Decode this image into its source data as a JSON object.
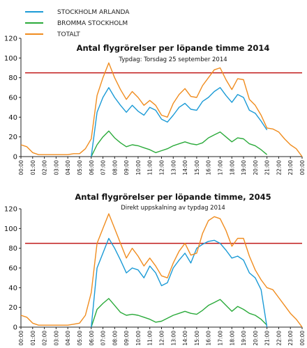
{
  "legend": [
    {
      "label": "STOCKHOLM ARLANDA",
      "color": "#1a9ad6"
    },
    {
      "label": "BROMMA STOCKHOLM",
      "color": "#2aaa3a"
    },
    {
      "label": "TOTALT",
      "color": "#f08c1e"
    }
  ],
  "chart_data": [
    {
      "type": "line",
      "title": "Antal flygrörelser per löpande timme 2014",
      "subtitle": "Typdag: Torsdag 25 september 2014",
      "ylim": [
        0,
        120
      ],
      "yticks": [
        0,
        20,
        40,
        60,
        80,
        100,
        120
      ],
      "reference_line": {
        "value": 85,
        "color": "#c01818"
      },
      "grid": false,
      "x_tick_labels": [
        "00:00",
        "01:00",
        "02:00",
        "03:00",
        "04:00",
        "05:00",
        "06:00",
        "07:00",
        "08:00",
        "09:00",
        "10:00",
        "11:00",
        "12:00",
        "13:00",
        "14:00",
        "15:00",
        "16:00",
        "17:00",
        "18:00",
        "19:00",
        "20:00",
        "21:00",
        "22:00",
        "23:00",
        "00:00"
      ],
      "x_hours": [
        0,
        0.5,
        1,
        1.5,
        2,
        2.5,
        3,
        3.5,
        4,
        4.5,
        5,
        5.5,
        6,
        6.5,
        7,
        7.5,
        8,
        8.5,
        9,
        9.5,
        10,
        10.5,
        11,
        11.5,
        12,
        12.5,
        13,
        13.5,
        14,
        14.5,
        15,
        15.5,
        16,
        16.5,
        17,
        17.5,
        18,
        18.5,
        19,
        19.5,
        20,
        20.5,
        21,
        21.5,
        22,
        22.5,
        23,
        23.5,
        24
      ],
      "series": [
        {
          "name": "STOCKHOLM ARLANDA",
          "color": "#1a9ad6",
          "values": [
            null,
            null,
            null,
            null,
            null,
            null,
            null,
            null,
            null,
            null,
            null,
            null,
            0,
            45,
            60,
            70,
            60,
            52,
            45,
            52,
            46,
            42,
            50,
            47,
            38,
            35,
            42,
            50,
            54,
            48,
            47,
            56,
            60,
            66,
            70,
            62,
            55,
            63,
            60,
            47,
            44,
            36,
            27,
            null,
            null,
            null,
            null,
            null,
            null
          ]
        },
        {
          "name": "BROMMA STOCKHOLM",
          "color": "#2aaa3a",
          "values": [
            null,
            null,
            null,
            null,
            null,
            null,
            null,
            null,
            null,
            null,
            null,
            null,
            0,
            12,
            20,
            26,
            19,
            14,
            10,
            12,
            11,
            9,
            7,
            4,
            6,
            8,
            11,
            13,
            15,
            13,
            12,
            14,
            19,
            22,
            25,
            20,
            15,
            19,
            18,
            13,
            11,
            7,
            2,
            null,
            null,
            null,
            null,
            null,
            null
          ]
        },
        {
          "name": "TOTALT",
          "color": "#f08c1e",
          "values": [
            12,
            10,
            4,
            2,
            2,
            2,
            2,
            2,
            2,
            3,
            3,
            8,
            18,
            62,
            80,
            95,
            80,
            68,
            58,
            66,
            60,
            52,
            57,
            52,
            42,
            40,
            54,
            63,
            69,
            61,
            60,
            72,
            80,
            88,
            90,
            78,
            68,
            79,
            78,
            58,
            52,
            42,
            29,
            28,
            25,
            18,
            12,
            8,
            0
          ]
        }
      ]
    },
    {
      "type": "line",
      "title": "Antal flygrörelser per löpande timme, 2045",
      "subtitle": "Direkt uppskalning av typdag 2014",
      "ylim": [
        0,
        120
      ],
      "yticks": [
        0,
        20,
        40,
        60,
        80,
        100,
        120
      ],
      "reference_line": {
        "value": 85,
        "color": "#c01818"
      },
      "grid": false,
      "x_tick_labels": [
        "00:00",
        "01:00",
        "02:00",
        "03:00",
        "04:00",
        "05:00",
        "06:00",
        "07:00",
        "08:00",
        "09:00",
        "10:00",
        "11:00",
        "12:00",
        "13:00",
        "14:00",
        "15:00",
        "16:00",
        "17:00",
        "18:00",
        "19:00",
        "20:00",
        "21:00",
        "22:00",
        "23:00",
        "00:00"
      ],
      "x_hours": [
        0,
        0.5,
        1,
        1.5,
        2,
        2.5,
        3,
        3.5,
        4,
        4.5,
        5,
        5.5,
        6,
        6.5,
        7,
        7.5,
        8,
        8.5,
        9,
        9.5,
        10,
        10.5,
        11,
        11.5,
        12,
        12.5,
        13,
        13.5,
        14,
        14.5,
        15,
        15.5,
        16,
        16.5,
        17,
        17.5,
        18,
        18.5,
        19,
        19.5,
        20,
        20.5,
        21,
        21.5,
        22,
        22.5,
        23,
        23.5,
        24
      ],
      "series": [
        {
          "name": "STOCKHOLM ARLANDA",
          "color": "#1a9ad6",
          "values": [
            null,
            null,
            null,
            null,
            null,
            null,
            null,
            null,
            null,
            null,
            null,
            null,
            0,
            60,
            75,
            90,
            80,
            68,
            55,
            60,
            58,
            50,
            62,
            55,
            42,
            45,
            60,
            68,
            75,
            65,
            80,
            84,
            87,
            88,
            85,
            78,
            70,
            72,
            68,
            55,
            50,
            38,
            0,
            null,
            null,
            null,
            null,
            null,
            null
          ]
        },
        {
          "name": "BROMMA STOCKHOLM",
          "color": "#2aaa3a",
          "values": [
            null,
            null,
            null,
            null,
            null,
            null,
            null,
            null,
            null,
            null,
            null,
            null,
            0,
            18,
            24,
            29,
            22,
            15,
            12,
            13,
            12,
            10,
            8,
            5,
            6,
            9,
            12,
            14,
            16,
            14,
            13,
            17,
            22,
            25,
            28,
            22,
            16,
            21,
            18,
            14,
            12,
            8,
            2,
            null,
            null,
            null,
            null,
            null,
            null
          ]
        },
        {
          "name": "TOTALT",
          "color": "#f08c1e",
          "values": [
            12,
            10,
            4,
            2,
            2,
            2,
            2,
            2,
            2,
            3,
            4,
            12,
            35,
            85,
            100,
            115,
            100,
            85,
            70,
            80,
            72,
            62,
            70,
            62,
            52,
            50,
            65,
            77,
            85,
            73,
            75,
            95,
            108,
            112,
            110,
            98,
            82,
            90,
            90,
            72,
            58,
            48,
            40,
            38,
            30,
            22,
            14,
            8,
            0
          ]
        }
      ]
    }
  ]
}
